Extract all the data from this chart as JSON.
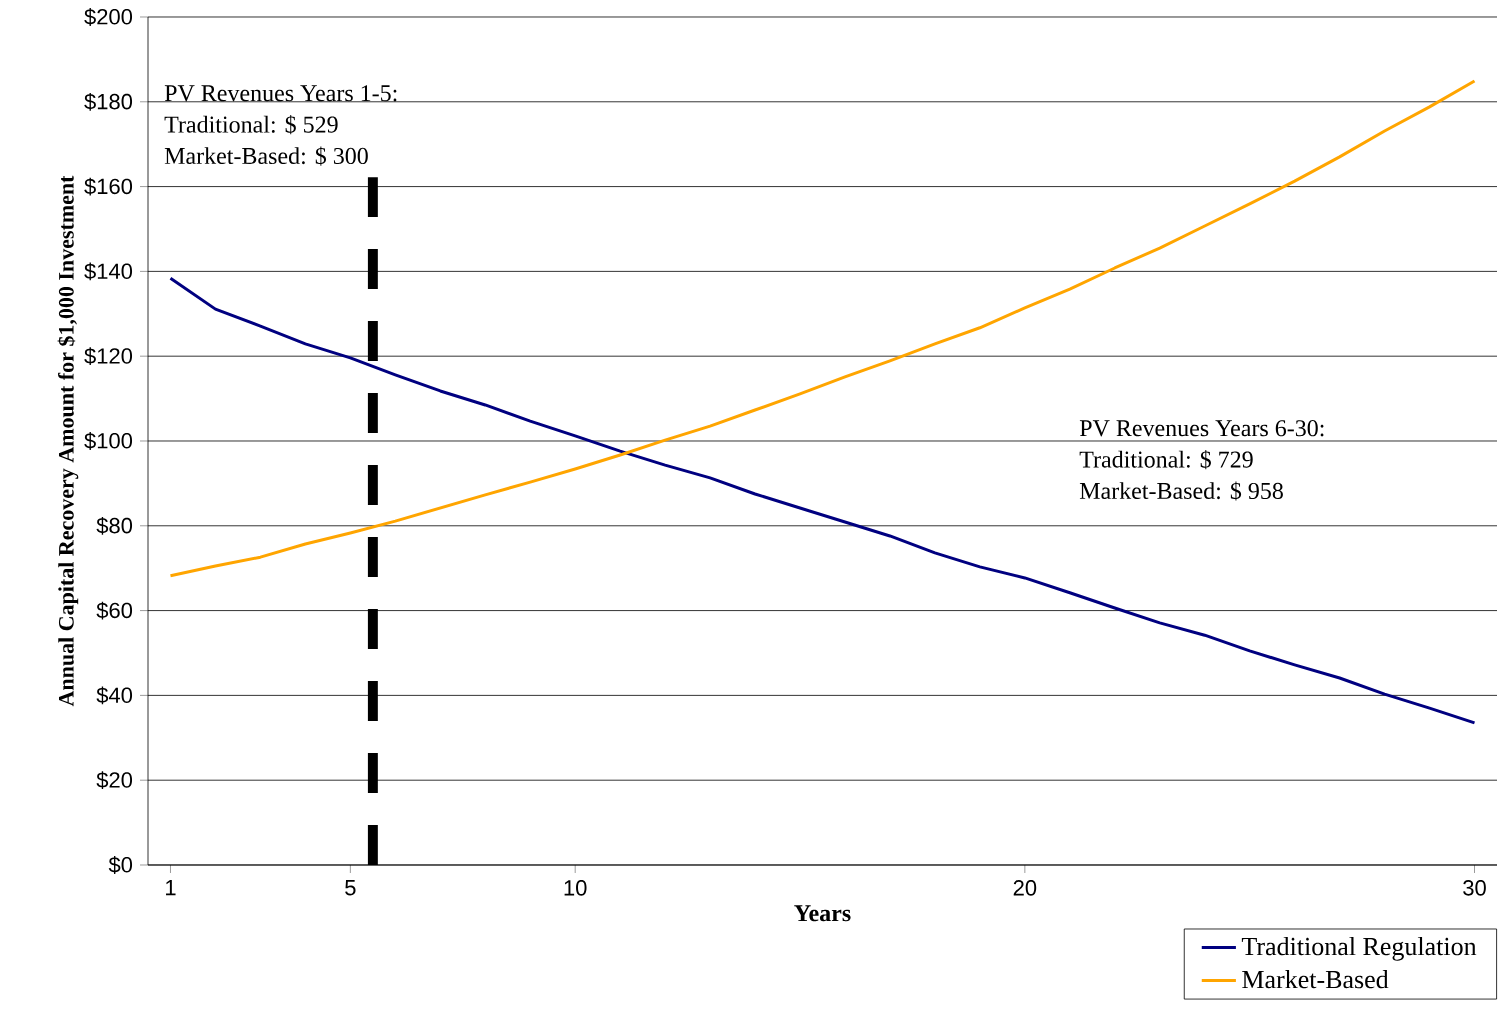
{
  "chart_data": {
    "type": "line",
    "xlabel": "Years",
    "ylabel": "Annual Capital Recovery Amount for $1,000 Investment",
    "x": [
      1,
      2,
      3,
      4,
      5,
      6,
      7,
      8,
      9,
      10,
      11,
      12,
      13,
      14,
      15,
      16,
      17,
      18,
      19,
      20,
      21,
      22,
      23,
      24,
      25,
      26,
      27,
      28,
      29,
      30
    ],
    "series": [
      {
        "name": "Traditional Regulation",
        "color": "#000080",
        "values": [
          138.4,
          131.1,
          127.1,
          122.9,
          119.6,
          115.6,
          111.8,
          108.5,
          104.7,
          101.2,
          97.6,
          94.3,
          91.3,
          87.5,
          84.2,
          80.9,
          77.6,
          73.6,
          70.3,
          67.7,
          64.2,
          60.6,
          57.1,
          54.2,
          50.5,
          47.2,
          44.1,
          40.3,
          37.0,
          33.5
        ]
      },
      {
        "name": "Market-Based",
        "color": "#ffa500",
        "values": [
          68.2,
          70.5,
          72.6,
          75.7,
          78.3,
          81.1,
          84.2,
          87.3,
          90.3,
          93.4,
          96.7,
          100.2,
          103.5,
          107.3,
          111.1,
          115.1,
          118.9,
          122.9,
          126.7,
          131.4,
          135.8,
          140.8,
          145.5,
          150.7,
          155.9,
          161.3,
          167.0,
          173.1,
          178.8,
          184.9
        ]
      }
    ],
    "xlim": [
      0.5,
      30.5
    ],
    "xticks": [
      1,
      5,
      10,
      20,
      30
    ],
    "ylim": [
      0,
      200
    ],
    "yticks": [
      {
        "value": 0,
        "label": "$0"
      },
      {
        "value": 20,
        "label": "$20"
      },
      {
        "value": 40,
        "label": "$40"
      },
      {
        "value": 60,
        "label": "$60"
      },
      {
        "value": 80,
        "label": "$80"
      },
      {
        "value": 100,
        "label": "$100"
      },
      {
        "value": 120,
        "label": "$120"
      },
      {
        "value": 140,
        "label": "$140"
      },
      {
        "value": 160,
        "label": "$160"
      },
      {
        "value": 180,
        "label": "$180"
      },
      {
        "value": 200,
        "label": "$200"
      }
    ],
    "grid": "y",
    "legend": "bottom right",
    "marker": "none",
    "line_style": "solid",
    "ref_lines": [
      {
        "axis": "x",
        "value": 5.5,
        "color": "#000000",
        "line_style": "dashed"
      }
    ],
    "annotations": [
      "PV Revenues Years 1-5:",
      "Traditional: $ 529",
      "Market-Based: $ 300",
      "PV Revenues Years 6-30:",
      "Traditional:  $ 729",
      "Market-Based: $ 958"
    ]
  }
}
